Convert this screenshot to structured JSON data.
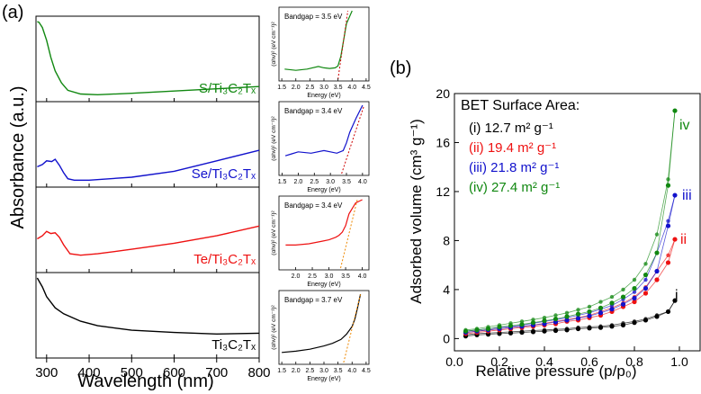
{
  "panel_a": {
    "label": "(a)",
    "xlabel": "Wavelength (nm)",
    "ylabel": "Absorbance (a.u.)",
    "xticks": [
      "300",
      "400",
      "500",
      "600",
      "700",
      "800"
    ],
    "xlim": [
      275,
      800
    ],
    "spectra": [
      {
        "name": "S/Ti₃C₂Tₓ",
        "color": "#118811",
        "x": [
          278,
          282,
          290,
          300,
          310,
          320,
          335,
          350,
          380,
          420,
          500,
          600,
          700,
          800
        ],
        "y": [
          1.0,
          0.99,
          0.92,
          0.75,
          0.52,
          0.34,
          0.18,
          0.08,
          0.03,
          0.02,
          0.04,
          0.07,
          0.1,
          0.13
        ]
      },
      {
        "name": "Se/Ti₃C₂Tₓ",
        "color": "#1111cc",
        "x": [
          278,
          290,
          300,
          312,
          320,
          330,
          340,
          350,
          365,
          400,
          500,
          600,
          700,
          800
        ],
        "y": [
          0.2,
          0.23,
          0.28,
          0.27,
          0.3,
          0.22,
          0.12,
          0.04,
          0.02,
          0.02,
          0.06,
          0.14,
          0.28,
          0.42
        ]
      },
      {
        "name": "Te/Ti₃C₂Tₓ",
        "color": "#ee1111",
        "x": [
          278,
          290,
          300,
          310,
          320,
          330,
          340,
          355,
          380,
          420,
          500,
          600,
          700,
          800
        ],
        "y": [
          0.38,
          0.42,
          0.48,
          0.45,
          0.46,
          0.4,
          0.3,
          0.18,
          0.16,
          0.18,
          0.24,
          0.32,
          0.42,
          0.55
        ]
      },
      {
        "name": "Ti₃C₂Tₓ",
        "color": "#000000",
        "x": [
          278,
          290,
          300,
          320,
          340,
          380,
          420,
          500,
          600,
          700,
          800
        ],
        "y": [
          1.0,
          0.88,
          0.75,
          0.6,
          0.52,
          0.42,
          0.36,
          0.3,
          0.27,
          0.25,
          0.26
        ]
      }
    ]
  },
  "tauc_plots": {
    "ylabel": "(αhν)² (eV cm⁻¹)²",
    "xlabel": "Energy (eV)",
    "insets": [
      {
        "bandgap": "Bandgap = 3.5 eV",
        "color": "#118811",
        "fit_color": "#cc0000",
        "xticks": [
          "1.5",
          "2.0",
          "2.5",
          "3.0",
          "3.5",
          "4.0",
          "4.5"
        ],
        "xlim": [
          1.4,
          4.6
        ],
        "x": [
          1.6,
          2.0,
          2.4,
          2.8,
          3.0,
          3.2,
          3.4,
          3.5,
          3.6,
          3.7,
          3.8,
          4.0
        ],
        "y": [
          0.1,
          0.08,
          0.1,
          0.14,
          0.12,
          0.11,
          0.12,
          0.15,
          0.3,
          0.55,
          0.8,
          1.0
        ],
        "fit": [
          [
            3.5,
            0.0
          ],
          [
            3.85,
            1.0
          ]
        ]
      },
      {
        "bandgap": "Bandgap = 3.4 eV",
        "color": "#1111cc",
        "fit_color": "#cc0000",
        "xticks": [
          "1.5",
          "2.0",
          "2.5",
          "3.0",
          "3.5",
          "4.0"
        ],
        "xlim": [
          1.4,
          4.2
        ],
        "x": [
          1.6,
          1.8,
          2.0,
          2.4,
          2.8,
          3.0,
          3.2,
          3.4,
          3.5,
          3.6,
          3.8,
          4.0
        ],
        "y": [
          0.22,
          0.25,
          0.28,
          0.26,
          0.3,
          0.28,
          0.26,
          0.3,
          0.42,
          0.58,
          0.8,
          1.0
        ],
        "fit": [
          [
            3.35,
            0.0
          ],
          [
            4.05,
            1.0
          ]
        ]
      },
      {
        "bandgap": "Bandgap = 3.4 eV",
        "color": "#ee1111",
        "fit_color": "#ee8800",
        "xticks": [
          "2.0",
          "2.5",
          "3.0",
          "3.5",
          "4.0"
        ],
        "xlim": [
          1.5,
          4.2
        ],
        "x": [
          1.7,
          2.0,
          2.4,
          2.8,
          3.0,
          3.2,
          3.3,
          3.4,
          3.5,
          3.6,
          3.8,
          4.0
        ],
        "y": [
          0.3,
          0.3,
          0.32,
          0.36,
          0.38,
          0.42,
          0.45,
          0.5,
          0.6,
          0.78,
          0.95,
          1.0
        ],
        "fit": [
          [
            3.35,
            0.0
          ],
          [
            3.85,
            1.0
          ]
        ]
      },
      {
        "bandgap": "Bandgap = 3.7 eV",
        "color": "#000000",
        "fit_color": "#ee8800",
        "xticks": [
          "1.5",
          "2.0",
          "2.5",
          "3.0",
          "3.5",
          "4.0",
          "4.5"
        ],
        "xlim": [
          1.4,
          4.6
        ],
        "x": [
          1.5,
          2.0,
          2.5,
          3.0,
          3.3,
          3.6,
          3.8,
          4.0,
          4.1,
          4.2,
          4.3
        ],
        "y": [
          0.1,
          0.12,
          0.15,
          0.2,
          0.24,
          0.3,
          0.38,
          0.5,
          0.62,
          0.8,
          1.0
        ],
        "fit": [
          [
            3.7,
            0.0
          ],
          [
            4.3,
            1.0
          ]
        ]
      }
    ]
  },
  "chart_data": {
    "type": "line",
    "title": "BET Surface Area:",
    "label": "(b)",
    "xlabel": "Relative pressure (p/p₀)",
    "ylabel": "Adsorbed volume (cm³ g⁻¹)",
    "xlim": [
      0.0,
      1.1
    ],
    "ylim": [
      -1,
      20
    ],
    "xticks": [
      "0.0",
      "0.2",
      "0.4",
      "0.6",
      "0.8",
      "1.0"
    ],
    "yticks": [
      "0",
      "4",
      "8",
      "12",
      "16",
      "20"
    ],
    "legend": [
      "(i) 12.7 m² g⁻¹",
      "(ii) 19.4 m² g⁻¹",
      "(iii) 21.8 m² g⁻¹",
      "(iv) 27.4 m² g⁻¹"
    ],
    "x": [
      0.05,
      0.1,
      0.15,
      0.2,
      0.25,
      0.3,
      0.35,
      0.4,
      0.45,
      0.5,
      0.55,
      0.6,
      0.65,
      0.7,
      0.75,
      0.8,
      0.85,
      0.9,
      0.95,
      0.98
    ],
    "series": [
      {
        "name": "i",
        "color": "#000000",
        "adsorption": [
          0.2,
          0.3,
          0.35,
          0.4,
          0.45,
          0.5,
          0.55,
          0.6,
          0.65,
          0.7,
          0.8,
          0.85,
          0.9,
          1.0,
          1.1,
          1.3,
          1.5,
          1.8,
          2.2,
          3.1
        ],
        "desorption": [
          0.3,
          0.4,
          0.45,
          0.5,
          0.55,
          0.6,
          0.65,
          0.7,
          0.75,
          0.8,
          0.9,
          0.95,
          1.0,
          1.1,
          1.25,
          1.4,
          1.6,
          1.9,
          2.2,
          3.1
        ]
      },
      {
        "name": "ii",
        "color": "#ee1111",
        "adsorption": [
          0.4,
          0.5,
          0.6,
          0.7,
          0.8,
          0.9,
          1.0,
          1.1,
          1.2,
          1.4,
          1.5,
          1.7,
          1.9,
          2.2,
          2.6,
          3.0,
          3.7,
          4.8,
          6.2,
          8.1
        ],
        "desorption": [
          0.5,
          0.6,
          0.7,
          0.8,
          0.9,
          1.0,
          1.1,
          1.25,
          1.4,
          1.55,
          1.7,
          1.9,
          2.2,
          2.5,
          2.9,
          3.4,
          4.2,
          5.5,
          6.8,
          8.1
        ]
      },
      {
        "name": "iii",
        "color": "#1111cc",
        "adsorption": [
          0.5,
          0.6,
          0.7,
          0.8,
          0.9,
          1.0,
          1.1,
          1.2,
          1.35,
          1.5,
          1.65,
          1.85,
          2.1,
          2.4,
          2.8,
          3.3,
          4.1,
          5.5,
          9.2,
          11.7
        ],
        "desorption": [
          0.6,
          0.7,
          0.8,
          0.9,
          1.0,
          1.1,
          1.25,
          1.4,
          1.55,
          1.7,
          1.9,
          2.1,
          2.4,
          2.7,
          3.2,
          3.8,
          4.8,
          7.0,
          9.6,
          11.7
        ]
      },
      {
        "name": "iv",
        "color": "#118811",
        "adsorption": [
          0.6,
          0.7,
          0.8,
          0.95,
          1.05,
          1.15,
          1.3,
          1.45,
          1.6,
          1.8,
          2.0,
          2.2,
          2.5,
          2.9,
          3.4,
          4.1,
          5.2,
          7.0,
          12.5,
          18.6
        ],
        "desorption": [
          0.7,
          0.8,
          0.95,
          1.1,
          1.25,
          1.4,
          1.55,
          1.7,
          1.9,
          2.1,
          2.35,
          2.6,
          3.0,
          3.4,
          4.0,
          4.8,
          6.1,
          8.5,
          13.0,
          18.6
        ]
      }
    ]
  }
}
